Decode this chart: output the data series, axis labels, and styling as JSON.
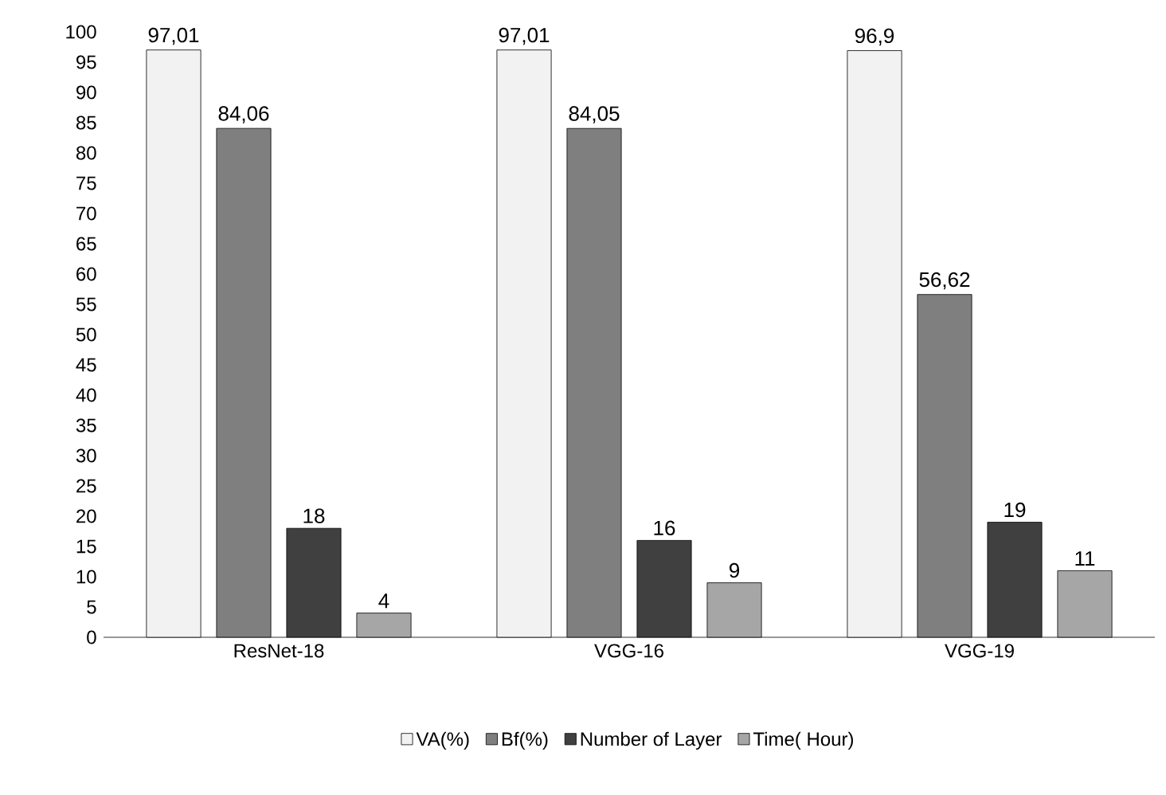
{
  "chart_data": {
    "type": "bar",
    "categories": [
      "ResNet-18",
      "VGG-16",
      "VGG-19"
    ],
    "series": [
      {
        "name": "VA(%)",
        "color": "#f2f2f2",
        "values": [
          97.01,
          97.01,
          96.9
        ],
        "value_labels": [
          "97,01",
          "97,01",
          "96,9"
        ]
      },
      {
        "name": "Bf(%)",
        "color": "#7f7f7f",
        "values": [
          84.06,
          84.05,
          56.62
        ],
        "value_labels": [
          "84,06",
          "84,05",
          "56,62"
        ]
      },
      {
        "name": "Number of Layer",
        "color": "#404040",
        "values": [
          18,
          16,
          19
        ],
        "value_labels": [
          "18",
          "16",
          "19"
        ]
      },
      {
        "name": "Time( Hour)",
        "color": "#a6a6a6",
        "values": [
          4,
          9,
          11
        ],
        "value_labels": [
          "4",
          "9",
          "11"
        ]
      }
    ],
    "ylim": [
      0,
      100
    ],
    "yticks": [
      0,
      5,
      10,
      15,
      20,
      25,
      30,
      35,
      40,
      45,
      50,
      55,
      60,
      65,
      70,
      75,
      80,
      85,
      90,
      95,
      100
    ],
    "legend": "bottom"
  }
}
